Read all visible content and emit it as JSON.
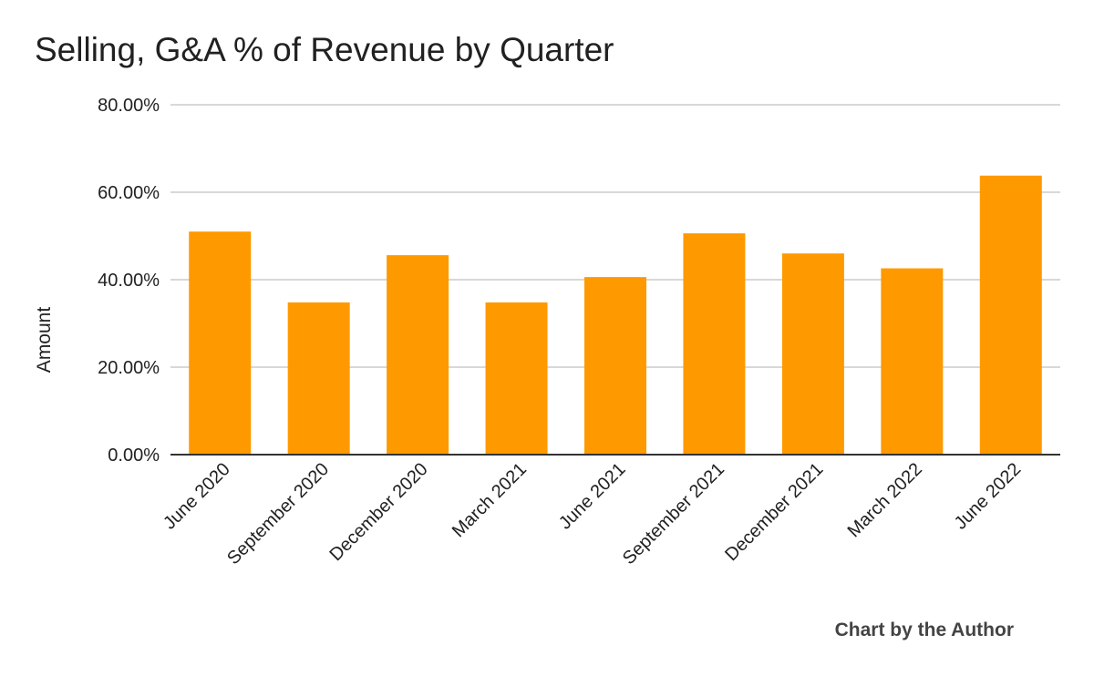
{
  "chart_data": {
    "type": "bar",
    "title": "Selling, G&A % of Revenue by Quarter",
    "xlabel": "",
    "ylabel": "Amount",
    "categories": [
      "June 2020",
      "September 2020",
      "December 2020",
      "March 2021",
      "June 2021",
      "September 2021",
      "December 2021",
      "March 2022",
      "June 2022"
    ],
    "series": [
      {
        "name": "Amount",
        "values": [
          51.0,
          34.8,
          45.6,
          34.8,
          40.6,
          50.6,
          46.0,
          42.6,
          63.8
        ],
        "color": "#FF9900"
      }
    ],
    "ylim": [
      0,
      80
    ],
    "yticks": [
      0,
      20,
      40,
      60,
      80
    ],
    "ytick_labels": [
      "0.00%",
      "20.00%",
      "40.00%",
      "60.00%",
      "80.00%"
    ],
    "grid": true,
    "legend": "none"
  },
  "footer": {
    "credit": "Chart by the Author"
  },
  "colors": {
    "bar": "#FF9900",
    "grid": "#cccccc",
    "axis": "#333333",
    "text": "#212121"
  }
}
